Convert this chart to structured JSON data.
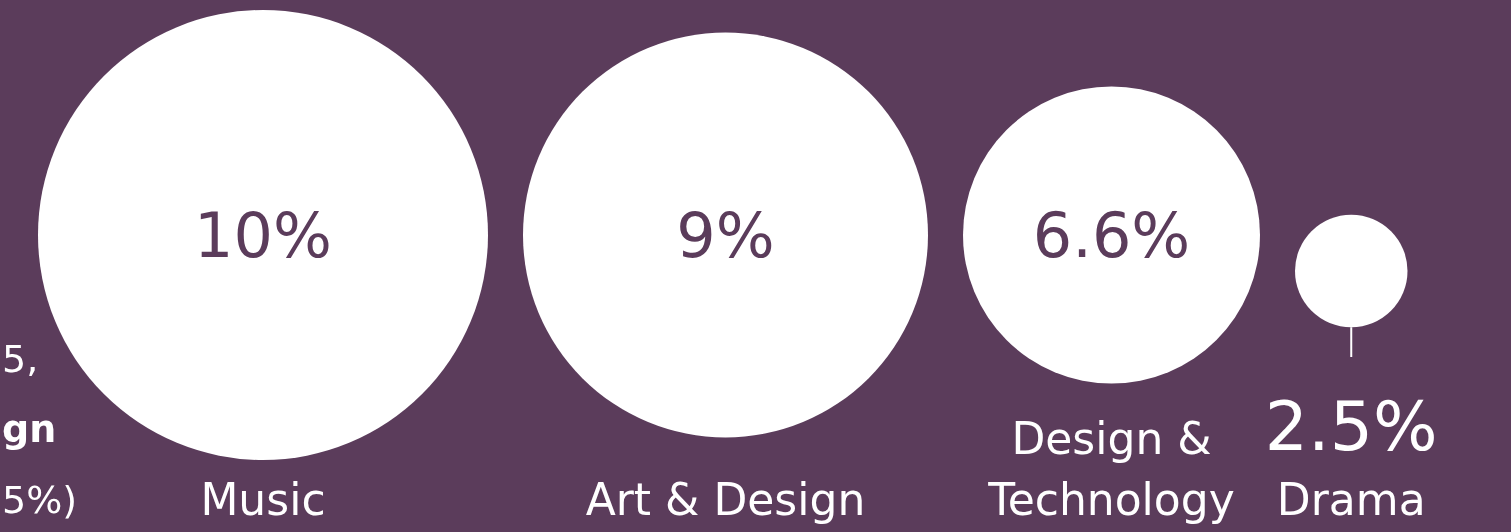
{
  "chart_data": {
    "type": "other",
    "categories": [
      "Music",
      "Art & Design",
      "Design & Technology",
      "Drama"
    ],
    "values": [
      10,
      9,
      6.6,
      2.5
    ],
    "value_labels": [
      "10%",
      "9%",
      "6.6%",
      "2.5%"
    ],
    "color": "#ffffff",
    "annotations": [
      "5,",
      "gn",
      "5%)"
    ]
  }
}
